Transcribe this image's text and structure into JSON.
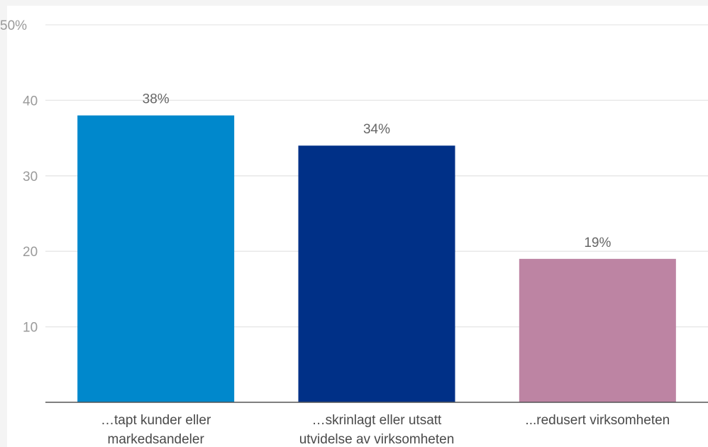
{
  "chart_data": {
    "type": "bar",
    "categories": [
      [
        "…tapt kunder eller",
        "markedsandeler"
      ],
      [
        "…skrinlagt eller utsatt",
        "utvidelse av virksomheten"
      ],
      [
        "...redusert virksomheten"
      ]
    ],
    "values": [
      38,
      34,
      19
    ],
    "value_labels": [
      "38%",
      "34%",
      "19%"
    ],
    "colors": [
      "#0088cc",
      "#003087",
      "#bd84a3"
    ],
    "y_ticks": [
      {
        "value": 10,
        "label": "10"
      },
      {
        "value": 20,
        "label": "20"
      },
      {
        "value": 30,
        "label": "30"
      },
      {
        "value": 40,
        "label": "40"
      },
      {
        "value": 50,
        "label": "50%"
      }
    ],
    "ylim": [
      0,
      50
    ],
    "grid": true,
    "title": "",
    "xlabel": "",
    "ylabel": ""
  }
}
